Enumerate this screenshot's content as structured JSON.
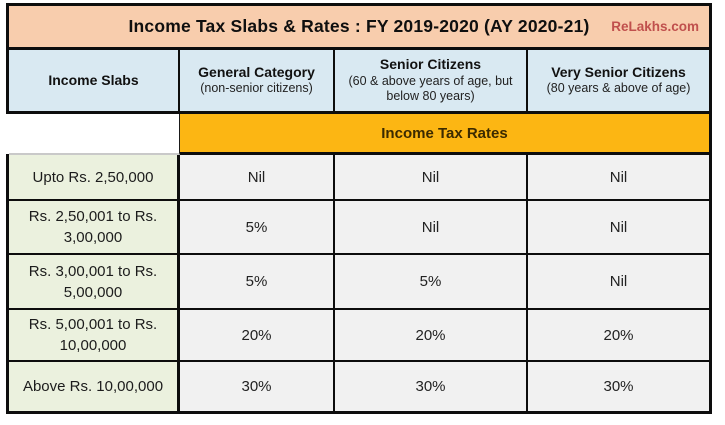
{
  "chart_data": {
    "type": "table",
    "title": "Income Tax Slabs & Rates : FY 2019-2020 (AY 2020-21)",
    "brand": "ReLakhs.com",
    "columns": [
      {
        "label": "Income Slabs",
        "sublabel": ""
      },
      {
        "label": "General Category",
        "sublabel": "(non-senior citizens)"
      },
      {
        "label": "Senior Citizens",
        "sublabel": "(60 & above years of age, but below 80 years)"
      },
      {
        "label": "Very Senior Citizens",
        "sublabel": "(80 years & above of age)"
      }
    ],
    "rates_banner": "Income Tax Rates",
    "rows": [
      {
        "slab": "Upto Rs. 2,50,000",
        "general": "Nil",
        "senior": "Nil",
        "very_senior": "Nil"
      },
      {
        "slab": "Rs. 2,50,001 to Rs. 3,00,000",
        "general": "5%",
        "senior": "Nil",
        "very_senior": "Nil"
      },
      {
        "slab": "Rs. 3,00,001 to Rs. 5,00,000",
        "general": "5%",
        "senior": "5%",
        "very_senior": "Nil"
      },
      {
        "slab": "Rs. 5,00,001 to Rs. 10,00,000",
        "general": "20%",
        "senior": "20%",
        "very_senior": "20%"
      },
      {
        "slab": "Above Rs. 10,00,000",
        "general": "30%",
        "senior": "30%",
        "very_senior": "30%"
      }
    ],
    "colors": {
      "title_bg": "#f8cdad",
      "brand_text": "#c0504d",
      "header_bg": "#d9e9f2",
      "banner_bg": "#fcb613",
      "banner_text": "#3b2a00",
      "slab_bg": "#ebf1de",
      "rate_bg": "#f1f1f1",
      "border": "#0d0d0d"
    }
  }
}
